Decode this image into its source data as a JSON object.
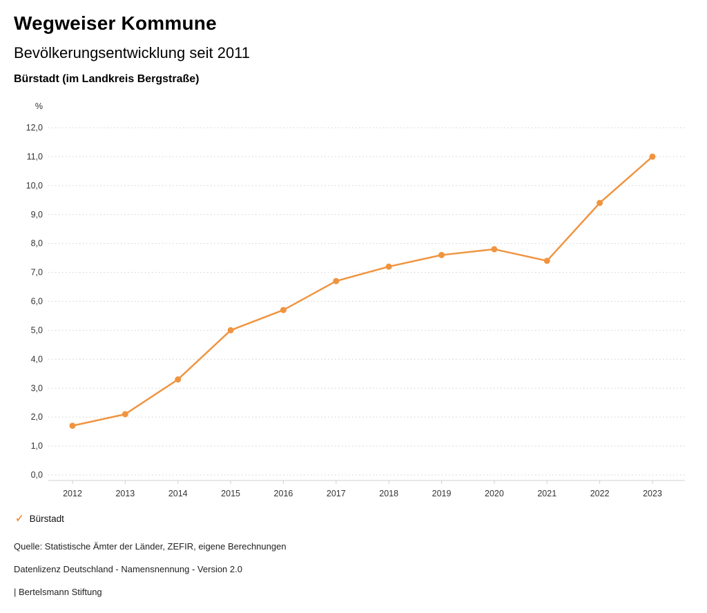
{
  "header": {
    "title": "Wegweiser Kommune",
    "subtitle": "Bevölkerungsentwicklung seit 2011",
    "chart_heading": "Bürstadt (im Landkreis Bergstraße)"
  },
  "chart_data": {
    "type": "line",
    "title": "Bevölkerungsentwicklung seit 2011",
    "subtitle": "Bürstadt (im Landkreis Bergstraße)",
    "unit_label": "%",
    "x": [
      "2012",
      "2013",
      "2014",
      "2015",
      "2016",
      "2017",
      "2018",
      "2019",
      "2020",
      "2021",
      "2022",
      "2023"
    ],
    "series": [
      {
        "name": "Bürstadt",
        "values": [
          1.7,
          2.1,
          3.3,
          5.0,
          5.7,
          6.7,
          7.2,
          7.6,
          7.8,
          7.4,
          9.4,
          11.0
        ],
        "color": "#f09440"
      }
    ],
    "ylim": [
      0,
      12
    ],
    "ytick_values": [
      0,
      1,
      2,
      3,
      4,
      5,
      6,
      7,
      8,
      9,
      10,
      11,
      12
    ],
    "ytick_labels": [
      "0,0",
      "1,0",
      "2,0",
      "3,0",
      "4,0",
      "5,0",
      "6,0",
      "7,0",
      "8,0",
      "9,0",
      "10,0",
      "11,0",
      "12,0"
    ],
    "grid": true,
    "legend_position": "bottom-left"
  },
  "legend": {
    "items": [
      {
        "label": "Bürstadt",
        "color": "#f09440",
        "icon": "check"
      }
    ],
    "check_glyph": "✓"
  },
  "footer": {
    "source": "Quelle: Statistische Ämter der Länder, ZEFIR, eigene Berechnungen",
    "license": "Datenlizenz Deutschland - Namensnennung - Version 2.0",
    "attribution": "| Bertelsmann Stiftung"
  },
  "colors": {
    "accent": "#f09440",
    "grid": "#cfcfcf",
    "axis": "#cfcfcf",
    "text": "#222222"
  }
}
